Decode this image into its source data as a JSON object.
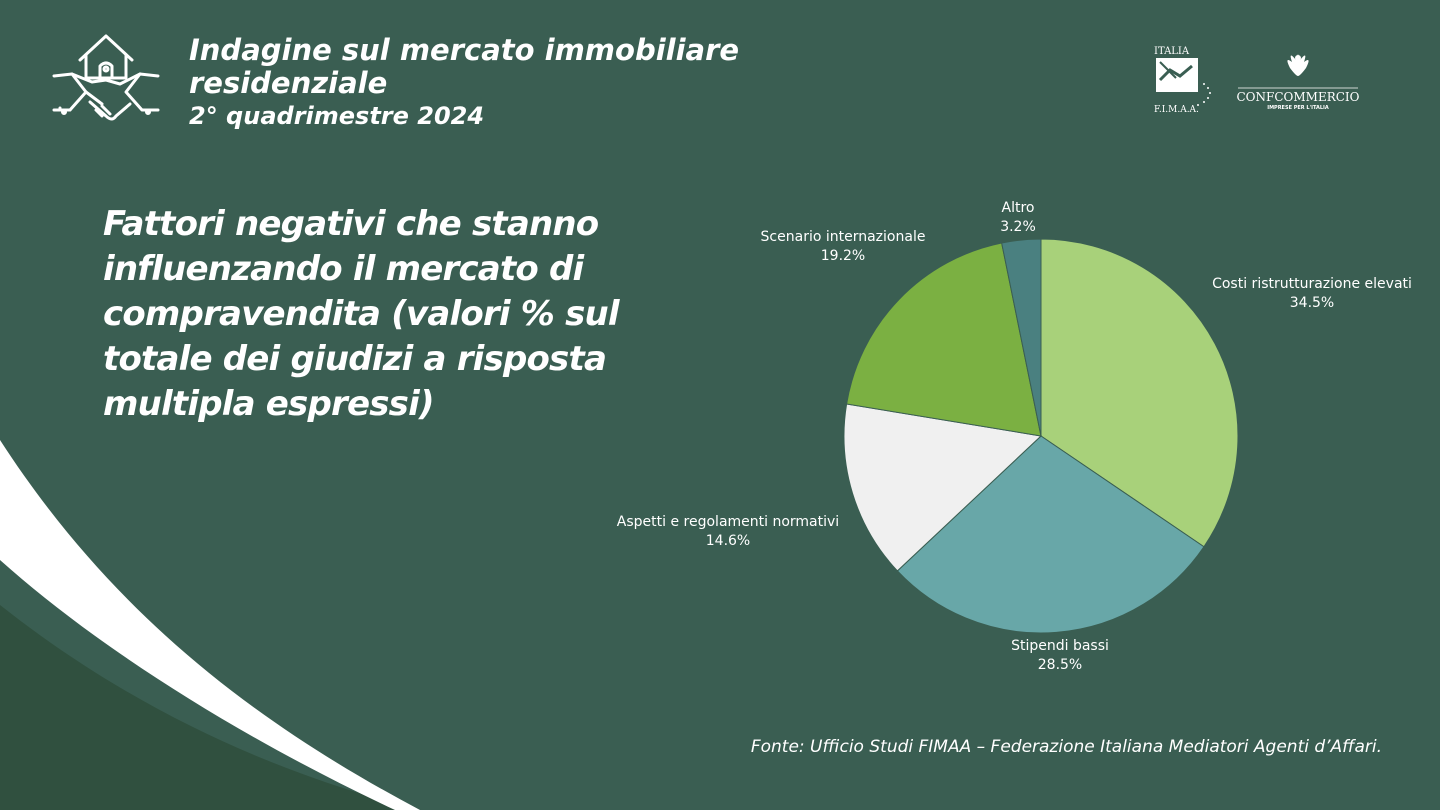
{
  "header": {
    "title": "Indagine sul mercato immobiliare residenziale",
    "subtitle": "2° quadrimestre 2024",
    "icon": "house-handshake-icon"
  },
  "logos": {
    "fimaa_top": "ITALIA",
    "fimaa_bottom": "F.I.M.A.A.",
    "confcommercio": "CONFCOMMERCIO",
    "confcommercio_sub": "IMPRESE PER L'ITALIA"
  },
  "main": {
    "heading": "Fattori negativi che stanno influenzando il mercato di compravendita (valori % sul totale dei giudizi a risposta multipla espressi)"
  },
  "chart_data": {
    "type": "pie",
    "slices": [
      {
        "label": "Costi ristrutturazione elevati",
        "value": 34.5,
        "value_label": "34.5%",
        "color": "#a8d17a"
      },
      {
        "label": "Stipendi bassi",
        "value": 28.5,
        "value_label": "28.5%",
        "color": "#68a7a8"
      },
      {
        "label": "Aspetti e regolamenti normativi",
        "value": 14.6,
        "value_label": "14.6%",
        "color": "#f0f0f0"
      },
      {
        "label": "Scenario internazionale",
        "value": 19.2,
        "value_label": "19.2%",
        "color": "#7bb042"
      },
      {
        "label": "Altro",
        "value": 3.2,
        "value_label": "3.2%",
        "color": "#4a8080"
      }
    ]
  },
  "footer": {
    "source": "Fonte: Ufficio Studi FIMAA – Federazione Italiana Mediatori Agenti d’Affari."
  },
  "colors": {
    "background": "#3a5e52",
    "decor_stripe": "#ffffff",
    "decor_dark": "#30503f"
  }
}
